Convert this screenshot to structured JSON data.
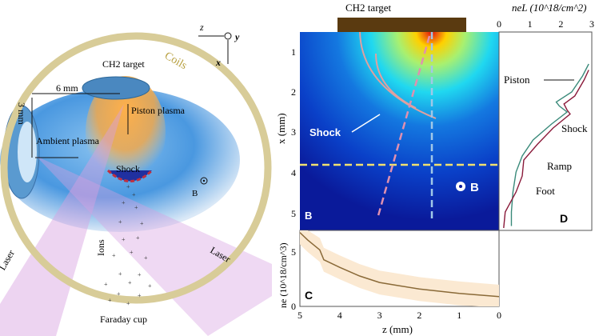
{
  "schematic": {
    "target_label": "CH2 target",
    "coils_label": "Coils",
    "dim_horizontal": "6 mm",
    "dim_vertical": "3 mm",
    "piston_label": "Piston plasma",
    "ambient_label": "Ambient plasma",
    "shock_label": "Shock",
    "field_label": "B",
    "ions_label": "Ions",
    "laser_left_label": "Laser",
    "laser_right_label": "Laser",
    "detector_label": "Faraday cup",
    "axes": {
      "z": "z",
      "x": "x",
      "y": "y"
    },
    "colors": {
      "coil": "#d8cc98",
      "ambient": "#3d8fd8",
      "piston": "#f2a03a",
      "laser": "#d8a0e0"
    }
  },
  "panel_b": {
    "panel_label": "B",
    "target_label": "CH2 target",
    "ylabel": "x (mm)",
    "yticks": [
      "1",
      "2",
      "3",
      "4",
      "5"
    ],
    "shock_label": "Shock",
    "field_label": "B",
    "colors": {
      "background": "#0a1a9a",
      "target_bar": "#5a3a10",
      "horizontal_lineout": "#f0e070",
      "vertical_lineout": "#a0c8e8",
      "oblique_lineout": "#e090b0"
    }
  },
  "chart_data": [
    {
      "type": "area",
      "panel_label": "C",
      "xlabel": "z (mm)",
      "ylabel": "ne (10^18/cm^3)",
      "xlim": [
        5,
        0
      ],
      "ylim": [
        0,
        7
      ],
      "xticks": [
        "5",
        "4",
        "3",
        "2",
        "1",
        "0"
      ],
      "yticks": [
        "0",
        "5"
      ],
      "x": [
        5,
        4.8,
        4.5,
        4.4,
        4.0,
        3.5,
        3.0,
        2.5,
        2.0,
        1.5,
        1.0,
        0.5,
        0
      ],
      "values": [
        6.8,
        6.1,
        5.2,
        4.3,
        3.6,
        2.8,
        2.2,
        1.9,
        1.6,
        1.4,
        1.2,
        1.05,
        0.9
      ],
      "band_halfwidth": 1.1,
      "colors": {
        "line": "#8a6a38",
        "band": "#fbe9d2"
      }
    },
    {
      "type": "line",
      "panel_label": "D",
      "xlabel": "neL (10^18/cm^2)",
      "xlim": [
        0,
        3
      ],
      "xticks": [
        "0",
        "1",
        "2",
        "3"
      ],
      "ylim": [
        0.5,
        5.5
      ],
      "series": [
        {
          "x_mm": [
            1.3,
            1.6,
            2.0,
            2.25,
            2.35,
            2.5,
            2.8,
            3.2,
            3.6,
            4.0,
            4.5,
            5.0,
            5.35
          ],
          "neL": [
            2.9,
            2.7,
            2.35,
            1.85,
            1.95,
            2.2,
            1.7,
            1.1,
            0.75,
            0.55,
            0.45,
            0.4,
            0.4
          ],
          "color": "#3a8a7a"
        },
        {
          "x_mm": [
            1.45,
            1.7,
            2.1,
            2.3,
            2.45,
            2.55,
            2.9,
            3.3,
            3.7,
            4.1,
            4.5,
            5.0,
            5.4
          ],
          "neL": [
            2.9,
            2.75,
            2.45,
            2.1,
            2.2,
            2.3,
            1.75,
            1.25,
            0.8,
            0.75,
            0.55,
            0.2,
            0.15
          ],
          "color": "#8a1a3a"
        }
      ],
      "annotations": [
        "Piston",
        "Shock",
        "Ramp",
        "Foot"
      ]
    }
  ]
}
